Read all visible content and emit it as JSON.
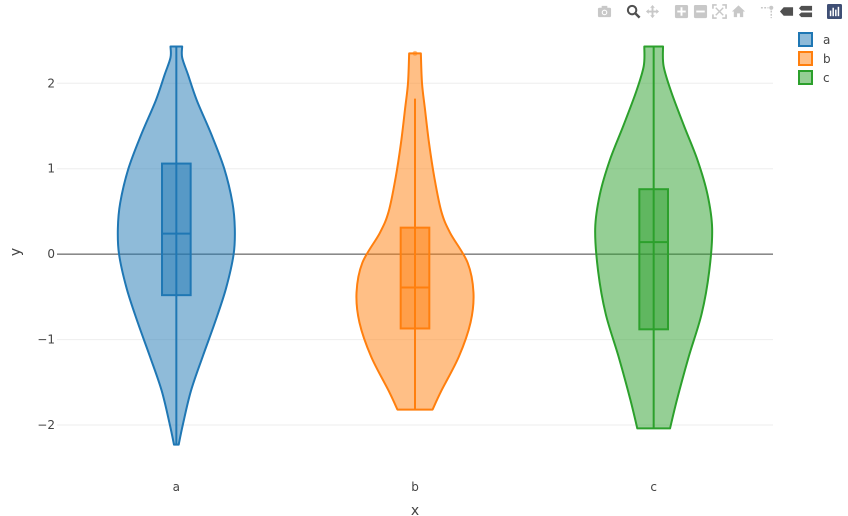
{
  "toolbar": {
    "buttons": [
      {
        "name": "download-plot-button",
        "icon": "camera-icon",
        "title": "Download plot as a png"
      },
      {
        "name": "zoom-button",
        "icon": "zoom-icon",
        "title": "Zoom"
      },
      {
        "name": "pan-button",
        "icon": "pan-icon",
        "title": "Pan"
      },
      {
        "name": "zoom-in-button",
        "icon": "plus-box-icon",
        "title": "Zoom in"
      },
      {
        "name": "zoom-out-button",
        "icon": "minus-box-icon",
        "title": "Zoom out"
      },
      {
        "name": "autoscale-button",
        "icon": "autoscale-icon",
        "title": "Autoscale"
      },
      {
        "name": "reset-axes-button",
        "icon": "home-icon",
        "title": "Reset axes"
      },
      {
        "name": "spike-lines-button",
        "icon": "spikeline-icon",
        "title": "Toggle Spike Lines"
      },
      {
        "name": "hover-closest-button",
        "icon": "tag-icon",
        "title": "Show closest data on hover"
      },
      {
        "name": "hover-compare-button",
        "icon": "compare-tags-icon",
        "title": "Compare data on hover"
      },
      {
        "name": "plotly-logo-button",
        "icon": "plotly-logo-icon",
        "title": "Produced with Plotly"
      }
    ],
    "active_color": "#505050",
    "inactive_color": "#c8c8c8",
    "logo_color": "#3f4f75"
  },
  "chart_data": {
    "type": "violin",
    "xlabel": "x",
    "ylabel": "y",
    "categories": [
      "a",
      "b",
      "c"
    ],
    "y_ticks": [
      -2,
      -1,
      0,
      1,
      2
    ],
    "y_tick_labels": [
      "−2",
      "−1",
      "0",
      "1",
      "2"
    ],
    "ylim": [
      -2.55,
      2.6
    ],
    "grid": true,
    "zero_line": true,
    "legend_position": "top-right",
    "series": [
      {
        "name": "a",
        "color": "#1f77b4",
        "fill": "rgba(31,119,180,0.5)",
        "min": -2.23,
        "q1": -0.48,
        "median": 0.24,
        "q3": 1.06,
        "max": 2.43,
        "outliers": [],
        "density": [
          [
            -2.23,
            0.04
          ],
          [
            -2.0,
            0.11
          ],
          [
            -1.6,
            0.25
          ],
          [
            -1.2,
            0.45
          ],
          [
            -0.8,
            0.66
          ],
          [
            -0.4,
            0.85
          ],
          [
            0.0,
            0.98
          ],
          [
            0.3,
            1.0
          ],
          [
            0.6,
            0.96
          ],
          [
            1.0,
            0.82
          ],
          [
            1.4,
            0.6
          ],
          [
            1.8,
            0.35
          ],
          [
            2.1,
            0.2
          ],
          [
            2.3,
            0.1
          ],
          [
            2.43,
            0.1
          ]
        ]
      },
      {
        "name": "b",
        "color": "#ff7f0e",
        "fill": "rgba(255,127,14,0.5)",
        "min": -1.82,
        "q1": -0.87,
        "median": -0.39,
        "q3": 0.31,
        "max": 1.82,
        "outliers": [
          2.35
        ],
        "density": [
          [
            -1.82,
            0.3
          ],
          [
            -1.6,
            0.45
          ],
          [
            -1.2,
            0.75
          ],
          [
            -0.8,
            0.95
          ],
          [
            -0.45,
            1.0
          ],
          [
            -0.1,
            0.9
          ],
          [
            0.25,
            0.6
          ],
          [
            0.5,
            0.45
          ],
          [
            0.9,
            0.33
          ],
          [
            1.3,
            0.24
          ],
          [
            1.7,
            0.17
          ],
          [
            2.0,
            0.12
          ],
          [
            2.35,
            0.1
          ]
        ]
      },
      {
        "name": "c",
        "color": "#2ca02c",
        "fill": "rgba(44,160,44,0.5)",
        "min": -2.04,
        "q1": -0.88,
        "median": 0.14,
        "q3": 0.76,
        "max": 2.43,
        "outliers": [],
        "density": [
          [
            -2.04,
            0.28
          ],
          [
            -1.7,
            0.4
          ],
          [
            -1.2,
            0.6
          ],
          [
            -0.7,
            0.82
          ],
          [
            -0.2,
            0.95
          ],
          [
            0.3,
            1.0
          ],
          [
            0.7,
            0.92
          ],
          [
            1.1,
            0.75
          ],
          [
            1.5,
            0.52
          ],
          [
            1.9,
            0.3
          ],
          [
            2.2,
            0.17
          ],
          [
            2.43,
            0.16
          ]
        ]
      }
    ]
  }
}
